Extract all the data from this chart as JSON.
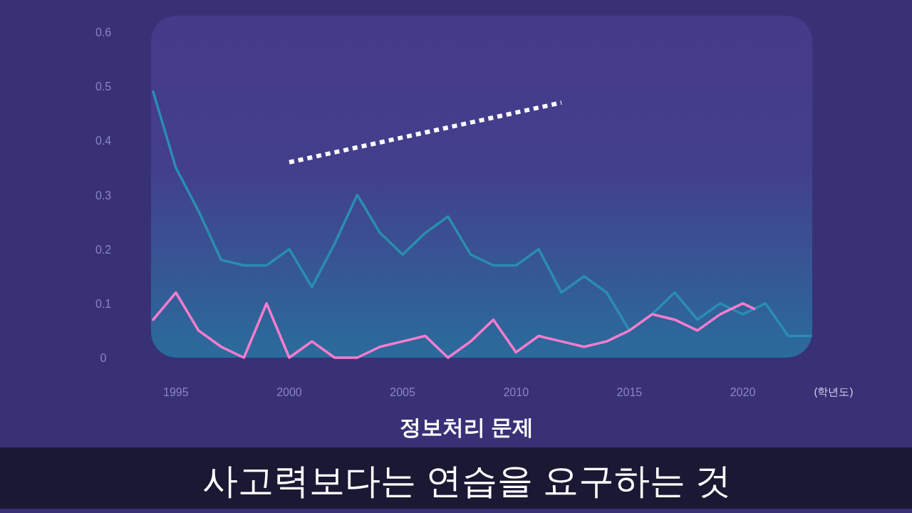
{
  "chart_data": {
    "type": "line",
    "title": "정보처리 문제",
    "xlabel": "(학년도)",
    "annotations": [
      "사고력보다는 연습을 요구하는 것"
    ],
    "xlim": [
      1994,
      2023
    ],
    "xticks": [
      1995,
      2000,
      2005,
      2010,
      2015,
      2020
    ],
    "ylim": [
      0,
      0.6
    ],
    "yticks": [
      0,
      0.1,
      0.2,
      0.3,
      0.4,
      0.5,
      0.6
    ],
    "series": [
      {
        "color": "#2a8db2",
        "x": [
          1994,
          1995,
          1996,
          1997,
          1998,
          1999,
          2000,
          2001,
          2002,
          2003,
          2004,
          2005,
          2006,
          2007,
          2008,
          2009,
          2010,
          2011,
          2012,
          2013,
          2014,
          2015,
          2016,
          2017,
          2018,
          2019,
          2020,
          2021,
          2022,
          2023
        ],
        "values": [
          0.49,
          0.35,
          0.27,
          0.18,
          0.17,
          0.17,
          0.2,
          0.13,
          0.21,
          0.3,
          0.23,
          0.19,
          0.23,
          0.26,
          0.19,
          0.17,
          0.17,
          0.2,
          0.12,
          0.15,
          0.12,
          0.05,
          0.08,
          0.12,
          0.07,
          0.1,
          0.08,
          0.1,
          0.04,
          0.04
        ]
      },
      {
        "color": "#ffffff",
        "line_style": "dotted",
        "x": [
          2000,
          2012
        ],
        "values": [
          0.36,
          0.47
        ]
      },
      {
        "color": "#ff7ccf",
        "x": [
          1994,
          1995,
          1996,
          1997,
          1998,
          1999,
          2000,
          2001,
          2002,
          2003,
          2004,
          2005,
          2006,
          2007,
          2008,
          2009,
          2010,
          2011,
          2012,
          2013,
          2014,
          2015,
          2016,
          2017,
          2018,
          2019,
          2020,
          2020.5
        ],
        "values": [
          0.07,
          0.12,
          0.05,
          0.02,
          0,
          0.1,
          0,
          0.03,
          0,
          0,
          0.02,
          0.03,
          0.04,
          0,
          0.03,
          0.07,
          0.01,
          0.04,
          0.03,
          0.02,
          0.03,
          0.05,
          0.08,
          0.07,
          0.05,
          0.08,
          0.1,
          0.09
        ]
      }
    ]
  }
}
